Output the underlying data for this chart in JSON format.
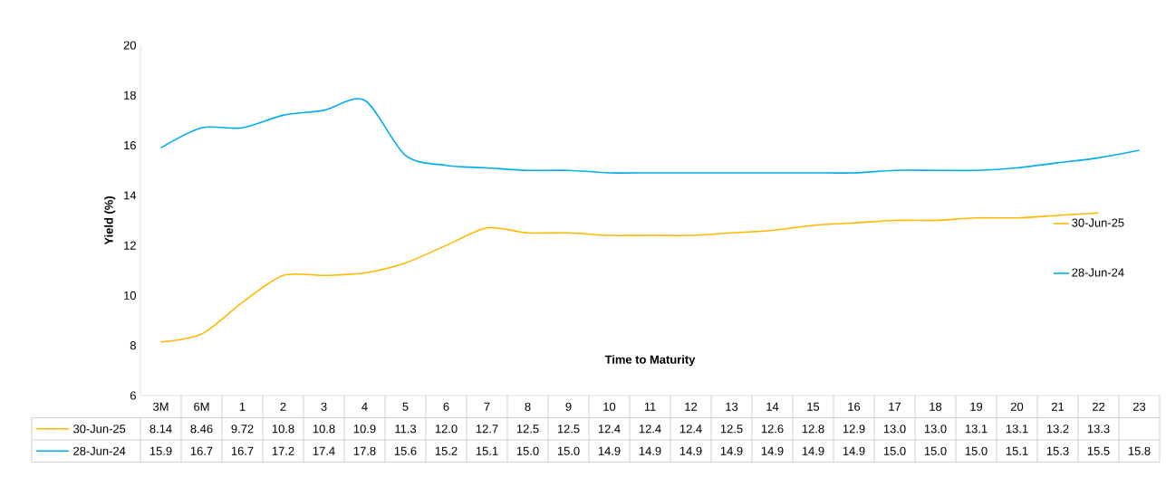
{
  "chart_data": {
    "type": "line",
    "xlabel": "Time to Maturity",
    "ylabel": "Yield (%)",
    "categories": [
      "3M",
      "6M",
      "1",
      "2",
      "3",
      "4",
      "5",
      "6",
      "7",
      "8",
      "9",
      "10",
      "11",
      "12",
      "13",
      "14",
      "15",
      "16",
      "17",
      "18",
      "19",
      "20",
      "21",
      "22",
      "23"
    ],
    "series": [
      {
        "name": "30-Jun-25",
        "color": "#ffb800",
        "values": [
          8.14,
          8.46,
          9.72,
          10.8,
          10.8,
          10.9,
          11.3,
          12.0,
          12.7,
          12.5,
          12.5,
          12.4,
          12.4,
          12.4,
          12.5,
          12.6,
          12.8,
          12.9,
          13.0,
          13.0,
          13.1,
          13.1,
          13.2,
          13.3,
          null
        ],
        "value_labels": [
          "8.14",
          "8.46",
          "9.72",
          "10.8",
          "10.8",
          "10.9",
          "11.3",
          "12.0",
          "12.7",
          "12.5",
          "12.5",
          "12.4",
          "12.4",
          "12.4",
          "12.5",
          "12.6",
          "12.8",
          "12.9",
          "13.0",
          "13.0",
          "13.1",
          "13.1",
          "13.2",
          "13.3",
          null
        ]
      },
      {
        "name": "28-Jun-24",
        "color": "#00aeef",
        "values": [
          15.9,
          16.7,
          16.7,
          17.2,
          17.4,
          17.8,
          15.6,
          15.2,
          15.1,
          15.0,
          15.0,
          14.9,
          14.9,
          14.9,
          14.9,
          14.9,
          14.9,
          14.9,
          15.0,
          15.0,
          15.0,
          15.1,
          15.3,
          15.5,
          15.8
        ],
        "value_labels": [
          "15.9",
          "16.7",
          "16.7",
          "17.2",
          "17.4",
          "17.8",
          "15.6",
          "15.2",
          "15.1",
          "15.0",
          "15.0",
          "14.9",
          "14.9",
          "14.9",
          "14.9",
          "14.9",
          "14.9",
          "14.9",
          "15.0",
          "15.0",
          "15.0",
          "15.1",
          "15.3",
          "15.5",
          "15.8"
        ]
      }
    ],
    "ylim": [
      6,
      20
    ],
    "yticks": [
      6,
      8,
      10,
      12,
      14,
      16,
      18,
      20
    ],
    "legend": "right",
    "grid": false,
    "marker": "none",
    "line_style": "solid"
  }
}
